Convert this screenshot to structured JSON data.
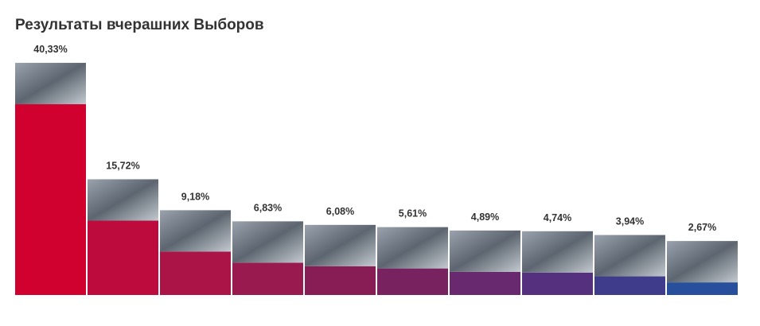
{
  "chart_data": {
    "type": "bar",
    "title": "Результаты вчерашних Выборов",
    "values": [
      40.33,
      15.72,
      9.18,
      6.83,
      6.08,
      5.61,
      4.89,
      4.74,
      3.94,
      2.67
    ],
    "value_labels": [
      "40,33%",
      "15,72%",
      "9,18%",
      "6,83%",
      "6,08%",
      "5,61%",
      "4,89%",
      "4,74%",
      "3,94%",
      "2,67%"
    ],
    "colors": [
      "#d0002f",
      "#bd0b3d",
      "#aa1447",
      "#981a4f",
      "#881d56",
      "#782260",
      "#68296f",
      "#55307e",
      "#3e3c8b",
      "#284f9c"
    ]
  }
}
